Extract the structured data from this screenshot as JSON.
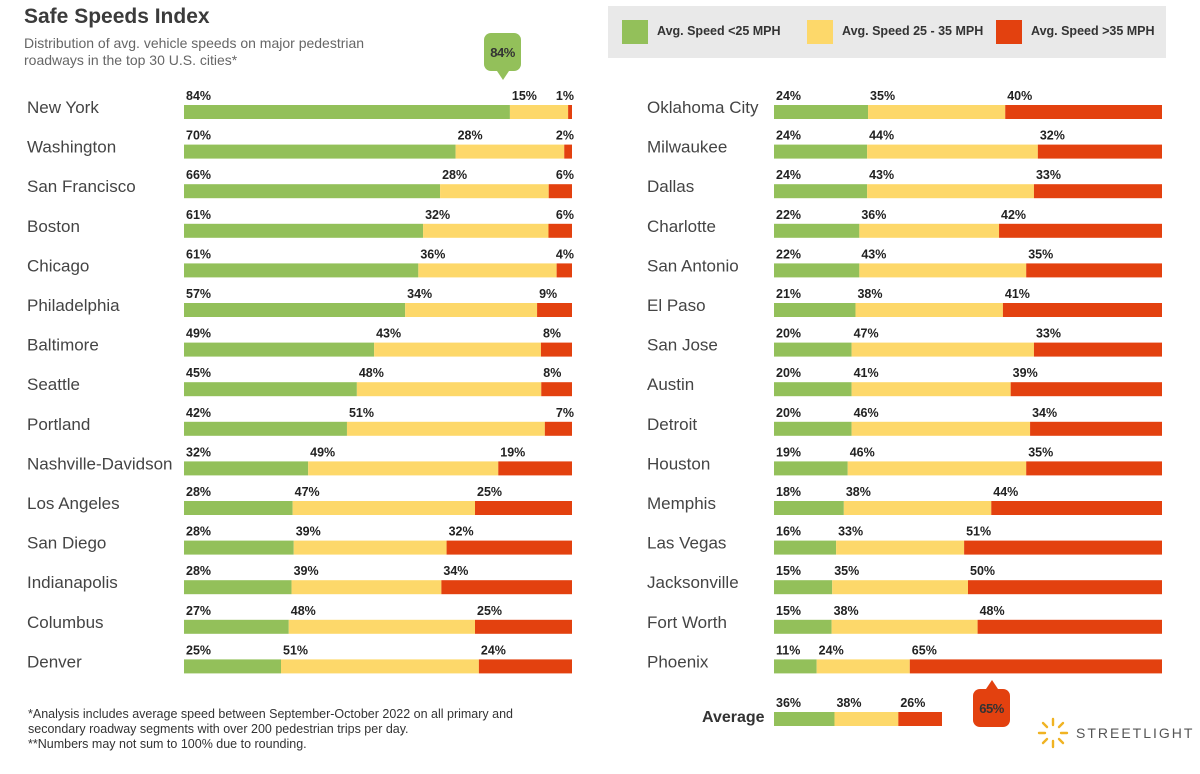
{
  "header": {
    "title": "Safe Speeds Index",
    "subtitle": "Distribution of avg. vehicle speeds on major pedestrian roadways in the top 30 U.S. cities*"
  },
  "legend": [
    {
      "label": "Avg. Speed <25 MPH",
      "color": "#93c05a"
    },
    {
      "label": "Avg. Speed 25 - 35 MPH",
      "color": "#fdd86a"
    },
    {
      "label": "Avg. Speed >35 MPH",
      "color": "#e3410f"
    }
  ],
  "callouts": {
    "top": "84%",
    "bottom": "65%"
  },
  "footnote": {
    "line1": "*Analysis includes average speed between September-October 2022 on all primary and secondary roadway segments with over 200 pedestrian trips per day.",
    "line2": "**Numbers may not sum to 100% due to rounding."
  },
  "average_label": "Average",
  "brand": "STREETLIGHT",
  "chart_data": {
    "type": "bar",
    "stacked": true,
    "orientation": "horizontal",
    "series": [
      {
        "name": "Avg. Speed <25 MPH",
        "color": "#93c05a"
      },
      {
        "name": "Avg. Speed 25 - 35 MPH",
        "color": "#fdd86a"
      },
      {
        "name": "Avg. Speed >35 MPH",
        "color": "#e3410f"
      }
    ],
    "left_column": [
      {
        "city": "New York",
        "values": [
          84,
          15,
          1
        ]
      },
      {
        "city": "Washington",
        "values": [
          70,
          28,
          2
        ]
      },
      {
        "city": "San Francisco",
        "values": [
          66,
          28,
          6
        ]
      },
      {
        "city": "Boston",
        "values": [
          61,
          32,
          6
        ]
      },
      {
        "city": "Chicago",
        "values": [
          61,
          36,
          4
        ]
      },
      {
        "city": "Philadelphia",
        "values": [
          57,
          34,
          9
        ]
      },
      {
        "city": "Baltimore",
        "values": [
          49,
          43,
          8
        ]
      },
      {
        "city": "Seattle",
        "values": [
          45,
          48,
          8
        ]
      },
      {
        "city": "Portland",
        "values": [
          42,
          51,
          7
        ]
      },
      {
        "city": "Nashville-Davidson",
        "values": [
          32,
          49,
          19
        ]
      },
      {
        "city": "Los Angeles",
        "values": [
          28,
          47,
          25
        ]
      },
      {
        "city": "San Diego",
        "values": [
          28,
          39,
          32
        ]
      },
      {
        "city": "Indianapolis",
        "values": [
          28,
          39,
          34
        ]
      },
      {
        "city": "Columbus",
        "values": [
          27,
          48,
          25
        ]
      },
      {
        "city": "Denver",
        "values": [
          25,
          51,
          24
        ]
      }
    ],
    "right_column": [
      {
        "city": "Oklahoma City",
        "values": [
          24,
          35,
          40
        ]
      },
      {
        "city": "Milwaukee",
        "values": [
          24,
          44,
          32
        ]
      },
      {
        "city": "Dallas",
        "values": [
          24,
          43,
          33
        ]
      },
      {
        "city": "Charlotte",
        "values": [
          22,
          36,
          42
        ]
      },
      {
        "city": "San Antonio",
        "values": [
          22,
          43,
          35
        ]
      },
      {
        "city": "El Paso",
        "values": [
          21,
          38,
          41
        ]
      },
      {
        "city": "San Jose",
        "values": [
          20,
          47,
          33
        ]
      },
      {
        "city": "Austin",
        "values": [
          20,
          41,
          39
        ]
      },
      {
        "city": "Detroit",
        "values": [
          20,
          46,
          34
        ]
      },
      {
        "city": "Houston",
        "values": [
          19,
          46,
          35
        ]
      },
      {
        "city": "Memphis",
        "values": [
          18,
          38,
          44
        ]
      },
      {
        "city": "Las Vegas",
        "values": [
          16,
          33,
          51
        ]
      },
      {
        "city": "Jacksonville",
        "values": [
          15,
          35,
          50
        ]
      },
      {
        "city": "Fort Worth",
        "values": [
          15,
          38,
          48
        ]
      },
      {
        "city": "Phoenix",
        "values": [
          11,
          24,
          65
        ]
      }
    ],
    "average": {
      "values": [
        36,
        38,
        26
      ]
    },
    "value_suffix": "%"
  }
}
